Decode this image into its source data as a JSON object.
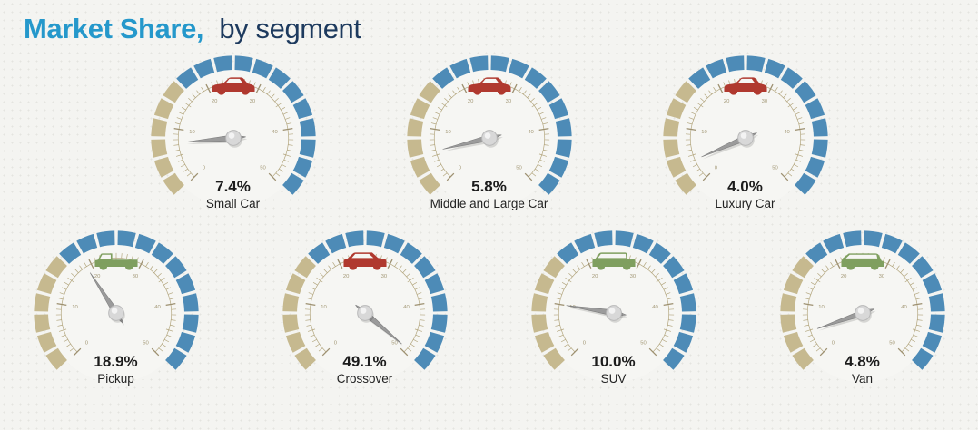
{
  "title": {
    "primary": "Market Share,",
    "secondary": "by segment"
  },
  "colors": {
    "background": "#f4f4f1",
    "dot": "#e4e4e0",
    "dial_face": "#f6f6f3",
    "title_primary": "#2598cb",
    "title_secondary": "#1d3a5e",
    "gauge_blue": "#4d8bb7",
    "gauge_tan": "#c6b98f",
    "tick": "#b2a57d",
    "tick_major": "#9d9070",
    "scale_text": "#a39876",
    "needle": "#9b9b9b",
    "needle_dark": "#7e7e7e",
    "hub": "#d8d8d8",
    "value_text": "#1c1c1c",
    "label_text": "#222222",
    "vehicle_red": "#b0392f",
    "vehicle_green": "#7f9f5f"
  },
  "chart_data": {
    "type": "gauge",
    "title": "Market Share, by segment",
    "unit": "percent",
    "scale": {
      "min": 0,
      "max": 50,
      "tick_step": 10,
      "tick_labels": [
        "0",
        "10",
        "20",
        "30",
        "40",
        "50"
      ],
      "sweep_degrees": 270,
      "start_angle_degrees": -135
    },
    "gauges": [
      {
        "label": "Small Car",
        "value": 7.4,
        "display": "7.4%",
        "icon": "sedan-icon",
        "icon_color": "#b0392f",
        "row": 1
      },
      {
        "label": "Middle and Large Car",
        "value": 5.8,
        "display": "5.8%",
        "icon": "sedan-icon",
        "icon_color": "#b0392f",
        "row": 1
      },
      {
        "label": "Luxury Car",
        "value": 4.0,
        "display": "4.0%",
        "icon": "luxury-sedan-icon",
        "icon_color": "#b0392f",
        "row": 1
      },
      {
        "label": "Pickup",
        "value": 18.9,
        "display": "18.9%",
        "icon": "pickup-truck-icon",
        "icon_color": "#7f9f5f",
        "row": 2
      },
      {
        "label": "Crossover",
        "value": 49.1,
        "display": "49.1%",
        "icon": "crossover-icon",
        "icon_color": "#b0392f",
        "row": 2
      },
      {
        "label": "SUV",
        "value": 10.0,
        "display": "10.0%",
        "icon": "suv-icon",
        "icon_color": "#7f9f5f",
        "row": 2
      },
      {
        "label": "Van",
        "value": 4.8,
        "display": "4.8%",
        "icon": "van-icon",
        "icon_color": "#7f9f5f",
        "row": 2
      }
    ]
  }
}
